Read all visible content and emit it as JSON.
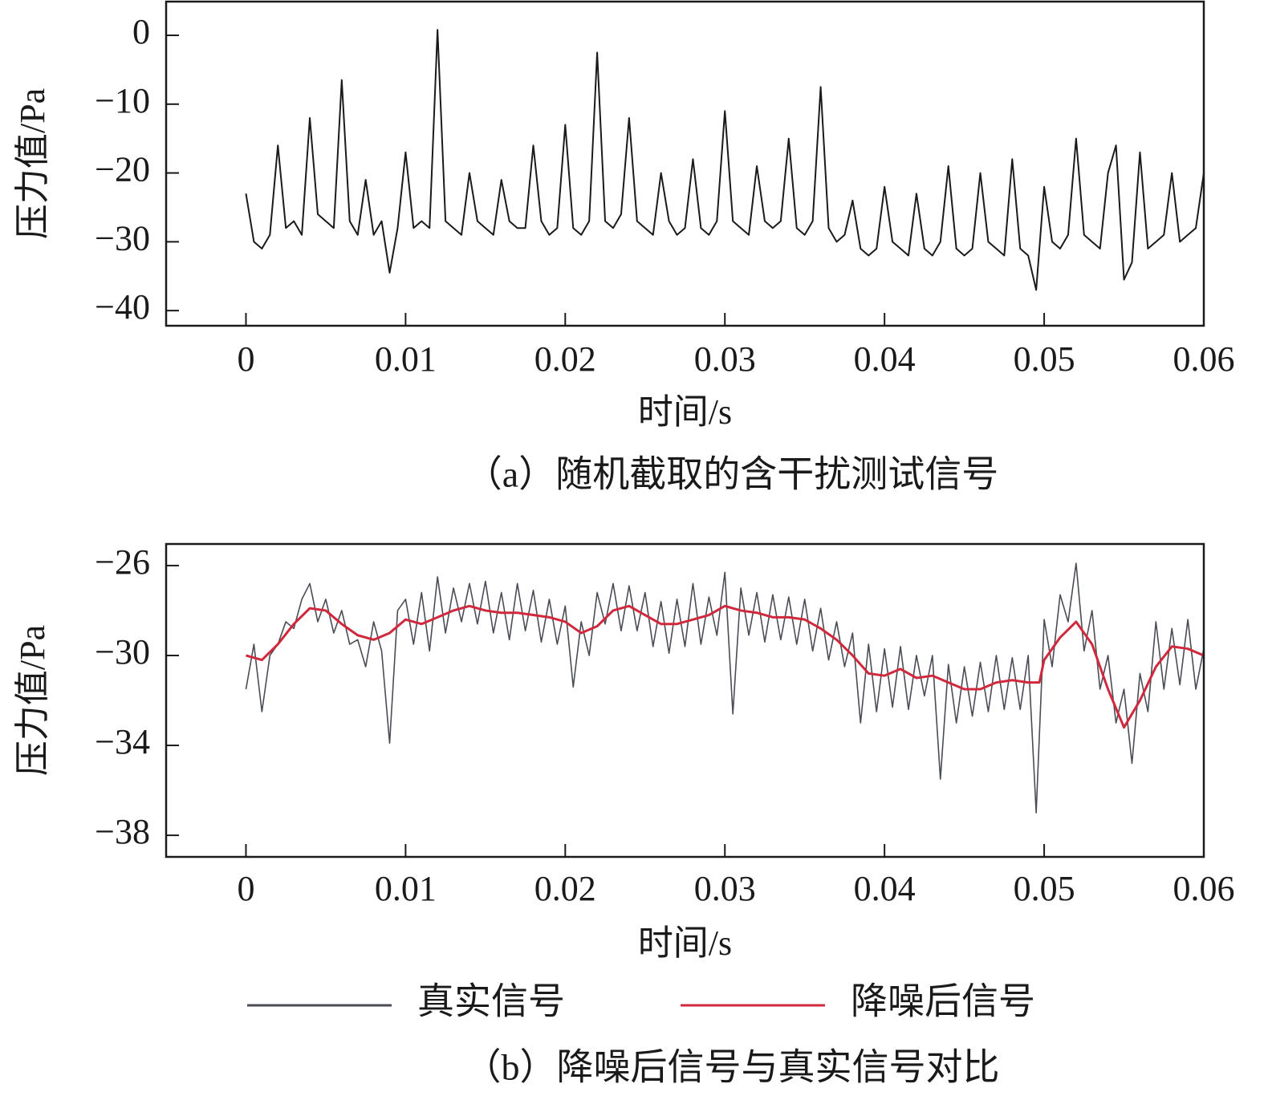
{
  "chart_data": [
    {
      "type": "line",
      "caption": "（a）随机截取的含干扰测试信号",
      "xlabel": "时间/s",
      "ylabel": "压力值/Pa",
      "color": "#1a1a1a",
      "x": [
        0,
        0.0005,
        0.001,
        0.0015,
        0.002,
        0.0025,
        0.003,
        0.0035,
        0.004,
        0.0045,
        0.005,
        0.0055,
        0.006,
        0.0065,
        0.007,
        0.0075,
        0.008,
        0.0085,
        0.009,
        0.0095,
        0.01,
        0.0105,
        0.011,
        0.0115,
        0.012,
        0.0125,
        0.013,
        0.0135,
        0.014,
        0.0145,
        0.015,
        0.0155,
        0.016,
        0.0165,
        0.017,
        0.0175,
        0.018,
        0.0185,
        0.019,
        0.0195,
        0.02,
        0.0205,
        0.021,
        0.0215,
        0.022,
        0.0225,
        0.023,
        0.0235,
        0.024,
        0.0245,
        0.025,
        0.0255,
        0.026,
        0.0265,
        0.027,
        0.0275,
        0.028,
        0.0285,
        0.029,
        0.0295,
        0.03,
        0.0305,
        0.031,
        0.0315,
        0.032,
        0.0325,
        0.033,
        0.0335,
        0.034,
        0.0345,
        0.035,
        0.0355,
        0.036,
        0.0365,
        0.037,
        0.0375,
        0.038,
        0.0385,
        0.039,
        0.0395,
        0.04,
        0.0405,
        0.041,
        0.0415,
        0.042,
        0.0425,
        0.043,
        0.0435,
        0.044,
        0.0445,
        0.045,
        0.0455,
        0.046,
        0.0465,
        0.047,
        0.0475,
        0.048,
        0.0485,
        0.049,
        0.0495,
        0.05,
        0.0505,
        0.051,
        0.0515,
        0.052,
        0.0525,
        0.053,
        0.0535,
        0.054,
        0.0545,
        0.055,
        0.0555,
        0.056,
        0.0565,
        0.057,
        0.0575,
        0.058,
        0.0585,
        0.059,
        0.0595,
        0.06
      ],
      "values": [
        -23,
        -30,
        -31,
        -29,
        -16,
        -28,
        -27,
        -29,
        -12,
        -26,
        -27,
        -28,
        -6.5,
        -27,
        -29,
        -21,
        -29,
        -27,
        -34.5,
        -28,
        -17,
        -28,
        -27,
        -28,
        0.8,
        -27,
        -28,
        -29,
        -20,
        -27,
        -28,
        -29,
        -21,
        -27,
        -28,
        -28,
        -16,
        -27,
        -29,
        -28,
        -13,
        -28,
        -29,
        -27,
        -2.5,
        -27,
        -28,
        -26,
        -12,
        -27,
        -28,
        -29,
        -20,
        -27,
        -29,
        -28,
        -18,
        -28,
        -29,
        -27,
        -11,
        -27,
        -28,
        -29,
        -19,
        -27,
        -28,
        -27,
        -15,
        -28,
        -29,
        -27,
        -7.5,
        -28,
        -30,
        -29,
        -24,
        -31,
        -32,
        -31,
        -22,
        -30,
        -31,
        -32,
        -23,
        -31,
        -32,
        -30,
        -19,
        -31,
        -32,
        -31,
        -20,
        -30,
        -31,
        -32,
        -18,
        -31,
        -32,
        -37,
        -22,
        -30,
        -31,
        -29,
        -15,
        -29,
        -30,
        -31,
        -20,
        -16,
        -35.5,
        -33,
        -17,
        -31,
        -30,
        -29,
        -20,
        -30,
        -29,
        -28,
        -20
      ],
      "xlim": [
        -0.005,
        0.06
      ],
      "xticks": [
        0,
        0.01,
        0.02,
        0.03,
        0.04,
        0.05,
        0.06
      ],
      "ylim": [
        -42.2,
        4.9
      ],
      "yticks": [
        0,
        {
          "value": -10,
          "label": "−10"
        },
        {
          "value": -20,
          "label": "−20"
        },
        {
          "value": -30,
          "label": "−30"
        },
        {
          "value": -40,
          "label": "−40"
        }
      ]
    },
    {
      "type": "line",
      "caption": "（b）降噪后信号与真实信号对比",
      "xlabel": "时间/s",
      "ylabel": "压力值/Pa",
      "legend": "bottom",
      "x": [
        0,
        0.0005,
        0.001,
        0.0015,
        0.002,
        0.0025,
        0.003,
        0.0035,
        0.004,
        0.0045,
        0.005,
        0.0055,
        0.006,
        0.0065,
        0.007,
        0.0075,
        0.008,
        0.0085,
        0.009,
        0.0095,
        0.01,
        0.0105,
        0.011,
        0.0115,
        0.012,
        0.0125,
        0.013,
        0.0135,
        0.014,
        0.0145,
        0.015,
        0.0155,
        0.016,
        0.0165,
        0.017,
        0.0175,
        0.018,
        0.0185,
        0.019,
        0.0195,
        0.02,
        0.0205,
        0.021,
        0.0215,
        0.022,
        0.0225,
        0.023,
        0.0235,
        0.024,
        0.0245,
        0.025,
        0.0255,
        0.026,
        0.0265,
        0.027,
        0.0275,
        0.028,
        0.0285,
        0.029,
        0.0295,
        0.03,
        0.0305,
        0.031,
        0.0315,
        0.032,
        0.0325,
        0.033,
        0.0335,
        0.034,
        0.0345,
        0.035,
        0.0355,
        0.036,
        0.0365,
        0.037,
        0.0375,
        0.038,
        0.0385,
        0.039,
        0.0395,
        0.04,
        0.0405,
        0.041,
        0.0415,
        0.042,
        0.0425,
        0.043,
        0.0435,
        0.044,
        0.0445,
        0.045,
        0.0455,
        0.046,
        0.0465,
        0.047,
        0.0475,
        0.048,
        0.0485,
        0.049,
        0.0495,
        0.05,
        0.0505,
        0.051,
        0.0515,
        0.052,
        0.0525,
        0.053,
        0.0535,
        0.054,
        0.0545,
        0.055,
        0.0555,
        0.056,
        0.0565,
        0.057,
        0.0575,
        0.058,
        0.0585,
        0.059,
        0.0595,
        0.06
      ],
      "series": [
        {
          "name": "真实信号",
          "color": "#4a4d55",
          "values": [
            -31.5,
            -29.5,
            -32.5,
            -30,
            -29.5,
            -28.5,
            -28.8,
            -27.5,
            -26.8,
            -28.5,
            -27.5,
            -29,
            -28,
            -29.5,
            -29.3,
            -30.5,
            -28.5,
            -29.8,
            -33.9,
            -28,
            -27.5,
            -29.5,
            -27.2,
            -29.8,
            -26.5,
            -29,
            -27,
            -28.5,
            -26.8,
            -28.6,
            -26.7,
            -29,
            -27.2,
            -29.3,
            -26.8,
            -28.9,
            -27.1,
            -29.4,
            -27.5,
            -29.5,
            -27.8,
            -31.4,
            -28.5,
            -30,
            -27.2,
            -28.6,
            -26.8,
            -28.9,
            -26.9,
            -28.9,
            -27.2,
            -29.6,
            -27.6,
            -29.9,
            -27.5,
            -29.6,
            -26.8,
            -29.5,
            -27.4,
            -29.1,
            -26.3,
            -32.6,
            -27,
            -29.1,
            -27.2,
            -29.4,
            -27.3,
            -29.3,
            -27.4,
            -29.5,
            -27.5,
            -29.8,
            -27.9,
            -30.2,
            -28.5,
            -30.5,
            -29,
            -33,
            -29.5,
            -32.5,
            -29.7,
            -32.3,
            -29.6,
            -32.4,
            -30,
            -31.8,
            -30,
            -35.5,
            -30.4,
            -33,
            -30.5,
            -32.7,
            -30.3,
            -32.5,
            -30,
            -32.4,
            -30.1,
            -32.4,
            -30,
            -37,
            -28.4,
            -30.5,
            -27.3,
            -28.5,
            -25.9,
            -29.8,
            -28,
            -31.5,
            -30,
            -33,
            -31.5,
            -34.8,
            -30.8,
            -32.5,
            -28.5,
            -31.5,
            -28.8,
            -31.3,
            -28.4,
            -31.5,
            -29.7
          ]
        },
        {
          "name": "降噪后信号",
          "color": "#d0283c",
          "x": [
            0,
            0.001,
            0.002,
            0.003,
            0.004,
            0.005,
            0.006,
            0.007,
            0.008,
            0.009,
            0.01,
            0.011,
            0.012,
            0.013,
            0.014,
            0.015,
            0.016,
            0.017,
            0.018,
            0.019,
            0.02,
            0.021,
            0.022,
            0.023,
            0.024,
            0.025,
            0.026,
            0.027,
            0.028,
            0.029,
            0.03,
            0.031,
            0.032,
            0.033,
            0.034,
            0.035,
            0.036,
            0.037,
            0.038,
            0.039,
            0.04,
            0.041,
            0.042,
            0.043,
            0.044,
            0.045,
            0.046,
            0.047,
            0.048,
            0.049,
            0.0497,
            0.05,
            0.051,
            0.052,
            0.053,
            0.054,
            0.055,
            0.056,
            0.057,
            0.058,
            0.059,
            0.06
          ],
          "values": [
            -30,
            -30.2,
            -29.5,
            -28.6,
            -27.9,
            -28,
            -28.6,
            -29.1,
            -29.3,
            -29,
            -28.4,
            -28.6,
            -28.3,
            -28,
            -27.8,
            -28,
            -28.1,
            -28.1,
            -28.2,
            -28.3,
            -28.5,
            -29,
            -28.7,
            -28,
            -27.8,
            -28.2,
            -28.6,
            -28.6,
            -28.4,
            -28.2,
            -27.8,
            -28,
            -28.1,
            -28.3,
            -28.3,
            -28.4,
            -28.8,
            -29.3,
            -30,
            -30.8,
            -30.9,
            -30.6,
            -31,
            -30.9,
            -31.2,
            -31.5,
            -31.5,
            -31.2,
            -31.1,
            -31.2,
            -31.2,
            -30.2,
            -29.2,
            -28.5,
            -29.5,
            -31.5,
            -33.2,
            -32,
            -30.5,
            -29.6,
            -29.7,
            -30
          ]
        }
      ],
      "xlim": [
        -0.005,
        0.06
      ],
      "xticks": [
        0,
        0.01,
        0.02,
        0.03,
        0.04,
        0.05,
        0.06
      ],
      "ylim": [
        -38.96,
        -25.04
      ],
      "yticks": [
        {
          "value": -26,
          "label": "−26"
        },
        {
          "value": -30,
          "label": "−30"
        },
        {
          "value": -34,
          "label": "−34"
        },
        {
          "value": -38,
          "label": "−38"
        }
      ]
    }
  ]
}
